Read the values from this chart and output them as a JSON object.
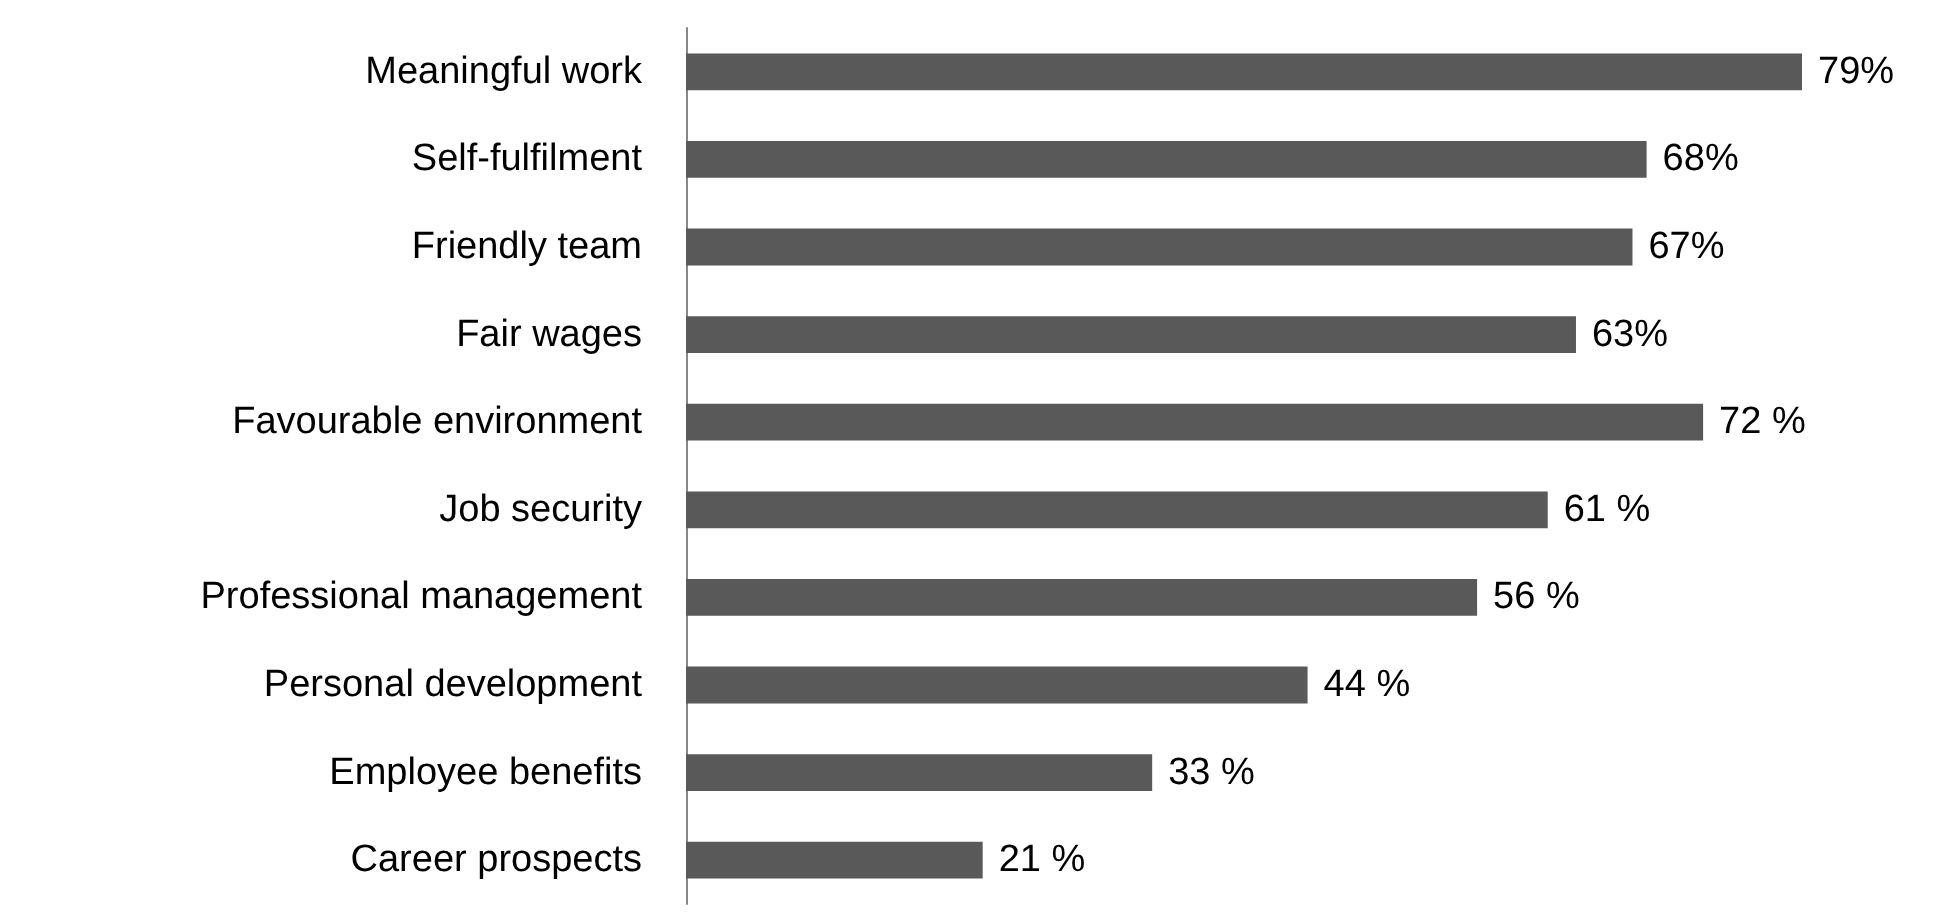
{
  "chart_data": {
    "type": "bar",
    "orientation": "horizontal",
    "categories": [
      "Meaningful work",
      "Self-fulfilment",
      "Friendly team",
      "Fair wages",
      "Favourable environment",
      "Job security",
      "Professional management",
      "Personal development",
      "Employee benefits",
      "Career prospects"
    ],
    "values": [
      79,
      68,
      67,
      63,
      72,
      61,
      56,
      44,
      33,
      21
    ],
    "value_labels": [
      "79%",
      "68%",
      "67%",
      "63%",
      "72 %",
      "61 %",
      "56 %",
      "44 %",
      "33 %",
      "21 %"
    ],
    "color": "#595959"
  }
}
